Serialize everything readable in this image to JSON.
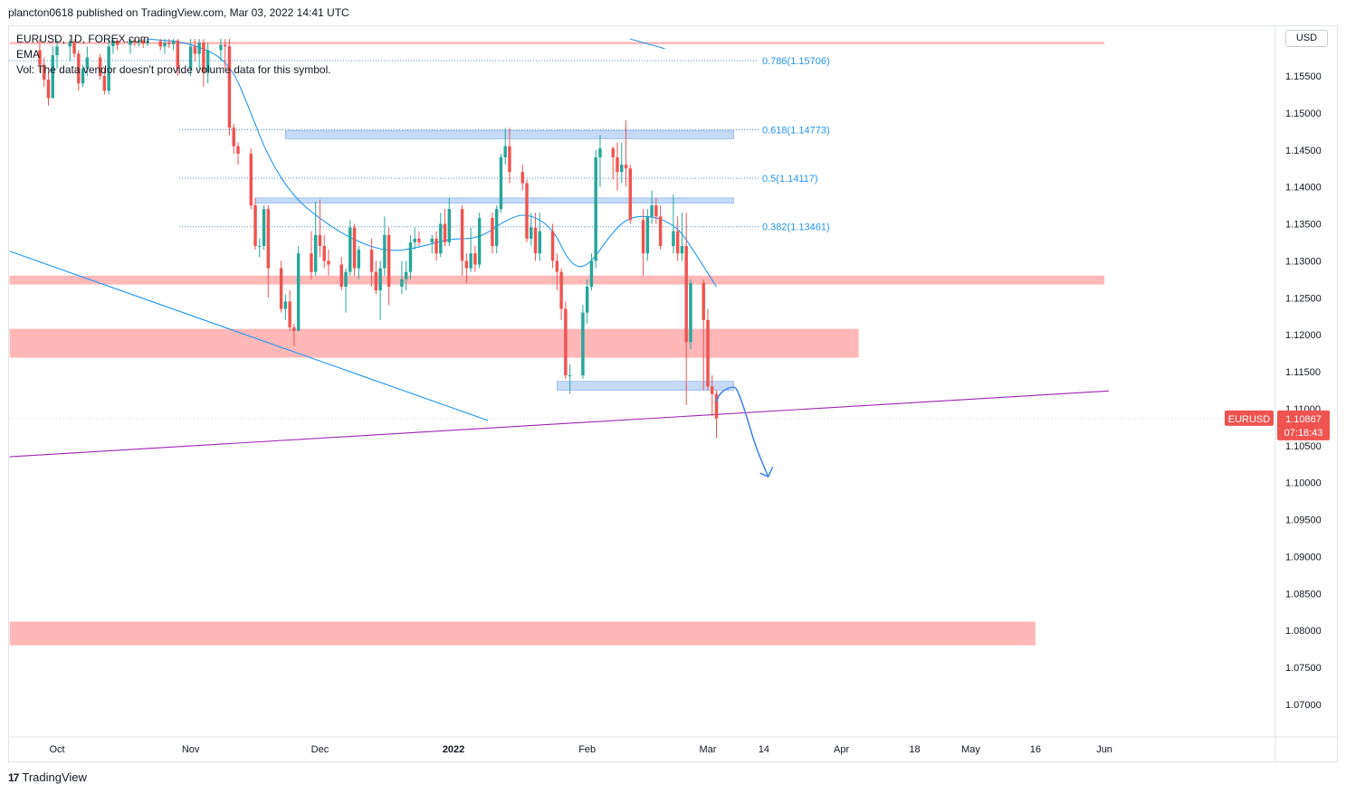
{
  "header": {
    "publish_line": "plancton0618 published on TradingView.com, Mar 03, 2022 14:41 UTC"
  },
  "legend": {
    "line1": "EURUSD, 1D, FOREX.com",
    "line2": "EMA",
    "line3": "Vol: The data vendor doesn't provide volume data for this symbol."
  },
  "currency_button": "USD",
  "footer": {
    "brand": "TradingView",
    "logo_mark": "17"
  },
  "colors": {
    "bull": "#26a69a",
    "bear": "#ef5350",
    "ema": "#2196f3",
    "resistance_zone": "#ffb3b3",
    "blue_zone": "#bcd3f5",
    "trend_purple": "#9c27b0",
    "price_tag": "#ef5350"
  },
  "chart_data": {
    "type": "candlestick",
    "symbol": "EURUSD",
    "timeframe": "1D",
    "y_axis": {
      "range": [
        1.0655,
        1.1595
      ],
      "ticks": [
        "1.15500",
        "1.15000",
        "1.14500",
        "1.14000",
        "1.13500",
        "1.13000",
        "1.12500",
        "1.12000",
        "1.11500",
        "1.11000",
        "1.10500",
        "1.10000",
        "1.09500",
        "1.09000",
        "1.08500",
        "1.08000",
        "1.07500",
        "1.07000"
      ]
    },
    "x_axis": {
      "ticks": [
        {
          "label": "Oct",
          "date": "2021-10-01"
        },
        {
          "label": "Nov",
          "date": "2021-11-01"
        },
        {
          "label": "Dec",
          "date": "2021-12-01"
        },
        {
          "label": "2022",
          "date": "2022-01-01"
        },
        {
          "label": "Feb",
          "date": "2022-02-01"
        },
        {
          "label": "Mar",
          "date": "2022-03-01"
        },
        {
          "label": "14",
          "date": "2022-03-14"
        },
        {
          "label": "Apr",
          "date": "2022-04-01"
        },
        {
          "label": "18",
          "date": "2022-04-18"
        },
        {
          "label": "May",
          "date": "2022-05-01"
        },
        {
          "label": "16",
          "date": "2022-05-16"
        },
        {
          "label": "Jun",
          "date": "2022-06-01"
        }
      ]
    },
    "current_price": {
      "label": "EURUSD",
      "value": "1.10867",
      "countdown": "07:18:43"
    },
    "fibonacci_levels": [
      {
        "label": "0.786(1.15706)",
        "price": 1.15706
      },
      {
        "label": "0.618(1.14773)",
        "price": 1.14773
      },
      {
        "label": "0.5(1.14117)",
        "price": 1.14117
      },
      {
        "label": "0.382(1.13461)",
        "price": 1.13461
      }
    ],
    "zones": [
      {
        "kind": "red",
        "top": 1.1596,
        "bottom": 1.1593,
        "start": "2021-09-20",
        "end": "2022-06-01"
      },
      {
        "kind": "red",
        "top": 1.128,
        "bottom": 1.1268,
        "start": "2021-09-20",
        "end": "2022-06-01"
      },
      {
        "kind": "red",
        "top": 1.1208,
        "bottom": 1.1169,
        "start": "2021-09-20",
        "end": "2022-04-05"
      },
      {
        "kind": "red",
        "top": 1.0812,
        "bottom": 1.078,
        "start": "2021-09-20",
        "end": "2022-05-16"
      },
      {
        "kind": "blue",
        "top": 1.1476,
        "bottom": 1.1465,
        "start": "2021-11-23",
        "end": "2022-03-07"
      },
      {
        "kind": "blue",
        "top": 1.1385,
        "bottom": 1.1378,
        "start": "2021-11-16",
        "end": "2022-03-07"
      },
      {
        "kind": "blue",
        "top": 1.1137,
        "bottom": 1.1125,
        "start": "2022-01-25",
        "end": "2022-03-07"
      }
    ],
    "ohlc": [
      [
        "2021-09-27",
        1.1585,
        1.16,
        1.1555,
        1.1565
      ],
      [
        "2021-09-28",
        1.1565,
        1.1575,
        1.1535,
        1.1545
      ],
      [
        "2021-09-29",
        1.1545,
        1.1555,
        1.151,
        1.152
      ],
      [
        "2021-09-30",
        1.152,
        1.159,
        1.152,
        1.1578
      ],
      [
        "2021-10-01",
        1.1578,
        1.16,
        1.156,
        1.159
      ],
      [
        "2021-10-04",
        1.159,
        1.16,
        1.157,
        1.1595
      ],
      [
        "2021-10-05",
        1.1595,
        1.16,
        1.1575,
        1.158
      ],
      [
        "2021-10-06",
        1.158,
        1.1585,
        1.153,
        1.154
      ],
      [
        "2021-10-07",
        1.154,
        1.1565,
        1.1535,
        1.156
      ],
      [
        "2021-10-08",
        1.156,
        1.159,
        1.155,
        1.1575
      ],
      [
        "2021-10-11",
        1.1575,
        1.158,
        1.1545,
        1.155
      ],
      [
        "2021-10-12",
        1.155,
        1.156,
        1.1525,
        1.153
      ],
      [
        "2021-10-13",
        1.153,
        1.16,
        1.1525,
        1.159
      ],
      [
        "2021-10-14",
        1.159,
        1.16,
        1.158,
        1.1598
      ],
      [
        "2021-10-15",
        1.1598,
        1.16,
        1.1585,
        1.1592
      ],
      [
        "2021-10-18",
        1.1592,
        1.16,
        1.158,
        1.1598
      ],
      [
        "2021-10-19",
        1.1598,
        1.16,
        1.159,
        1.1596
      ],
      [
        "2021-10-20",
        1.1596,
        1.16,
        1.159,
        1.1598
      ],
      [
        "2021-10-21",
        1.1598,
        1.16,
        1.1588,
        1.1594
      ],
      [
        "2021-10-22",
        1.1594,
        1.16,
        1.159,
        1.1597
      ],
      [
        "2021-10-25",
        1.1597,
        1.16,
        1.1585,
        1.159
      ],
      [
        "2021-10-26",
        1.159,
        1.16,
        1.158,
        1.1595
      ],
      [
        "2021-10-27",
        1.1595,
        1.16,
        1.1588,
        1.1593
      ],
      [
        "2021-10-28",
        1.1593,
        1.16,
        1.1585,
        1.1598
      ],
      [
        "2021-10-29",
        1.1598,
        1.16,
        1.155,
        1.156
      ],
      [
        "2021-11-01",
        1.156,
        1.16,
        1.155,
        1.159
      ],
      [
        "2021-11-02",
        1.159,
        1.16,
        1.157,
        1.158
      ],
      [
        "2021-11-03",
        1.158,
        1.16,
        1.156,
        1.1595
      ],
      [
        "2021-11-04",
        1.1595,
        1.16,
        1.1535,
        1.1555
      ],
      [
        "2021-11-05",
        1.1555,
        1.1595,
        1.154,
        1.1585
      ],
      [
        "2021-11-08",
        1.1585,
        1.16,
        1.157,
        1.1592
      ],
      [
        "2021-11-09",
        1.1592,
        1.16,
        1.156,
        1.159
      ],
      [
        "2021-11-10",
        1.159,
        1.16,
        1.147,
        1.148
      ],
      [
        "2021-11-11",
        1.148,
        1.1485,
        1.1445,
        1.1455
      ],
      [
        "2021-11-12",
        1.1455,
        1.146,
        1.143,
        1.1445
      ],
      [
        "2021-11-15",
        1.1445,
        1.1452,
        1.137,
        1.1375
      ],
      [
        "2021-11-16",
        1.1375,
        1.1385,
        1.1315,
        1.132
      ],
      [
        "2021-11-17",
        1.132,
        1.133,
        1.1305,
        1.132
      ],
      [
        "2021-11-18",
        1.132,
        1.1375,
        1.1315,
        1.137
      ],
      [
        "2021-11-19",
        1.137,
        1.1375,
        1.125,
        1.129
      ],
      [
        "2021-11-22",
        1.129,
        1.13,
        1.123,
        1.1235
      ],
      [
        "2021-11-23",
        1.1235,
        1.1255,
        1.122,
        1.1245
      ],
      [
        "2021-11-24",
        1.1245,
        1.126,
        1.1205,
        1.121
      ],
      [
        "2021-11-25",
        1.121,
        1.1215,
        1.1185,
        1.1205
      ],
      [
        "2021-11-26",
        1.1205,
        1.132,
        1.1205,
        1.131
      ],
      [
        "2021-11-29",
        1.131,
        1.134,
        1.1275,
        1.1285
      ],
      [
        "2021-11-30",
        1.1285,
        1.138,
        1.128,
        1.1335
      ],
      [
        "2021-12-01",
        1.1335,
        1.1383,
        1.1305,
        1.132
      ],
      [
        "2021-12-02",
        1.132,
        1.1335,
        1.129,
        1.13
      ],
      [
        "2021-12-03",
        1.13,
        1.1315,
        1.128,
        1.1295
      ],
      [
        "2021-12-06",
        1.1295,
        1.1305,
        1.126,
        1.1265
      ],
      [
        "2021-12-07",
        1.1265,
        1.129,
        1.123,
        1.1285
      ],
      [
        "2021-12-08",
        1.1285,
        1.1355,
        1.128,
        1.1345
      ],
      [
        "2021-12-09",
        1.1345,
        1.135,
        1.128,
        1.129
      ],
      [
        "2021-12-10",
        1.129,
        1.132,
        1.1275,
        1.1315
      ],
      [
        "2021-12-13",
        1.1315,
        1.133,
        1.1265,
        1.1285
      ],
      [
        "2021-12-14",
        1.1285,
        1.13,
        1.1255,
        1.126
      ],
      [
        "2021-12-15",
        1.126,
        1.13,
        1.122,
        1.129
      ],
      [
        "2021-12-16",
        1.129,
        1.136,
        1.128,
        1.1335
      ],
      [
        "2021-12-17",
        1.1335,
        1.1345,
        1.124,
        1.1265
      ],
      [
        "2021-12-20",
        1.1265,
        1.13,
        1.1255,
        1.1275
      ],
      [
        "2021-12-21",
        1.1275,
        1.13,
        1.126,
        1.1285
      ],
      [
        "2021-12-22",
        1.1285,
        1.1335,
        1.1275,
        1.1325
      ],
      [
        "2021-12-23",
        1.1325,
        1.1345,
        1.1315,
        1.133
      ],
      [
        "2021-12-24",
        1.133,
        1.134,
        1.132,
        1.1325
      ],
      [
        "2021-12-27",
        1.1325,
        1.1335,
        1.131,
        1.133
      ],
      [
        "2021-12-28",
        1.133,
        1.134,
        1.13,
        1.131
      ],
      [
        "2021-12-29",
        1.131,
        1.1365,
        1.1305,
        1.135
      ],
      [
        "2021-12-30",
        1.135,
        1.137,
        1.132,
        1.1325
      ],
      [
        "2021-12-31",
        1.1325,
        1.1385,
        1.132,
        1.137
      ],
      [
        "2022-01-03",
        1.137,
        1.1375,
        1.128,
        1.13
      ],
      [
        "2022-01-04",
        1.13,
        1.131,
        1.127,
        1.129
      ],
      [
        "2022-01-05",
        1.129,
        1.1345,
        1.1285,
        1.131
      ],
      [
        "2022-01-06",
        1.131,
        1.132,
        1.1285,
        1.1295
      ],
      [
        "2022-01-07",
        1.1295,
        1.1365,
        1.129,
        1.1358
      ],
      [
        "2022-01-10",
        1.1358,
        1.1365,
        1.131,
        1.132
      ],
      [
        "2022-01-11",
        1.132,
        1.1375,
        1.131,
        1.137
      ],
      [
        "2022-01-12",
        1.137,
        1.1445,
        1.1365,
        1.144
      ],
      [
        "2022-01-13",
        1.144,
        1.148,
        1.143,
        1.1455
      ],
      [
        "2022-01-14",
        1.1455,
        1.148,
        1.1405,
        1.142
      ],
      [
        "2022-01-17",
        1.142,
        1.143,
        1.1395,
        1.1405
      ],
      [
        "2022-01-18",
        1.1405,
        1.141,
        1.1325,
        1.133
      ],
      [
        "2022-01-19",
        1.133,
        1.1365,
        1.132,
        1.1345
      ],
      [
        "2022-01-20",
        1.1345,
        1.1365,
        1.13,
        1.131
      ],
      [
        "2022-01-21",
        1.131,
        1.1365,
        1.13,
        1.134
      ],
      [
        "2022-01-24",
        1.134,
        1.135,
        1.129,
        1.13
      ],
      [
        "2022-01-25",
        1.13,
        1.131,
        1.126,
        1.1285
      ],
      [
        "2022-01-26",
        1.1285,
        1.129,
        1.122,
        1.1235
      ],
      [
        "2022-01-27",
        1.1235,
        1.1245,
        1.114,
        1.1145
      ],
      [
        "2022-01-28",
        1.1145,
        1.116,
        1.112,
        1.1145
      ],
      [
        "2022-01-31",
        1.1145,
        1.124,
        1.114,
        1.123
      ],
      [
        "2022-02-01",
        1.123,
        1.1275,
        1.1215,
        1.1265
      ],
      [
        "2022-02-02",
        1.1265,
        1.131,
        1.126,
        1.13
      ],
      [
        "2022-02-03",
        1.13,
        1.145,
        1.129,
        1.144
      ],
      [
        "2022-02-04",
        1.144,
        1.147,
        1.14,
        1.1452
      ],
      [
        "2022-02-07",
        1.1452,
        1.1455,
        1.141,
        1.144
      ],
      [
        "2022-02-08",
        1.144,
        1.146,
        1.1395,
        1.142
      ],
      [
        "2022-02-09",
        1.142,
        1.146,
        1.1405,
        1.143
      ],
      [
        "2022-02-10",
        1.143,
        1.149,
        1.14,
        1.1425
      ],
      [
        "2022-02-11",
        1.1425,
        1.143,
        1.135,
        1.1355
      ],
      [
        "2022-02-14",
        1.1355,
        1.137,
        1.128,
        1.131
      ],
      [
        "2022-02-15",
        1.131,
        1.137,
        1.13,
        1.136
      ],
      [
        "2022-02-16",
        1.136,
        1.1395,
        1.135,
        1.1375
      ],
      [
        "2022-02-17",
        1.1375,
        1.1385,
        1.135,
        1.136
      ],
      [
        "2022-02-18",
        1.136,
        1.1375,
        1.1315,
        1.132
      ],
      [
        "2022-02-21",
        1.132,
        1.139,
        1.131,
        1.134
      ],
      [
        "2022-02-22",
        1.134,
        1.136,
        1.13,
        1.131
      ],
      [
        "2022-02-23",
        1.131,
        1.1365,
        1.13,
        1.132
      ],
      [
        "2022-02-24",
        1.132,
        1.1365,
        1.1105,
        1.119
      ],
      [
        "2022-02-25",
        1.119,
        1.1275,
        1.118,
        1.127
      ],
      [
        "2022-02-28",
        1.127,
        1.1275,
        1.1125,
        1.122
      ],
      [
        "2022-03-01",
        1.122,
        1.1235,
        1.1125,
        1.113
      ],
      [
        "2022-03-02",
        1.113,
        1.1145,
        1.109,
        1.112
      ],
      [
        "2022-03-03",
        1.112,
        1.1125,
        1.106,
        1.1087
      ]
    ],
    "ema_points": [
      [
        "2021-10-22",
        1.16
      ],
      [
        "2021-11-01",
        1.1595
      ],
      [
        "2021-11-10",
        1.157
      ],
      [
        "2021-11-15",
        1.15
      ],
      [
        "2021-11-19",
        1.144
      ],
      [
        "2021-11-25",
        1.1385
      ],
      [
        "2021-12-03",
        1.1348
      ],
      [
        "2021-12-10",
        1.1325
      ],
      [
        "2021-12-17",
        1.1312
      ],
      [
        "2021-12-24",
        1.1318
      ],
      [
        "2021-12-31",
        1.133
      ],
      [
        "2022-01-07",
        1.133
      ],
      [
        "2022-01-13",
        1.1355
      ],
      [
        "2022-01-18",
        1.1365
      ],
      [
        "2022-01-24",
        1.1345
      ],
      [
        "2022-01-28",
        1.1295
      ],
      [
        "2022-02-01",
        1.129
      ],
      [
        "2022-02-07",
        1.134
      ],
      [
        "2022-02-11",
        1.136
      ],
      [
        "2022-02-17",
        1.136
      ],
      [
        "2022-02-22",
        1.1345
      ],
      [
        "2022-02-25",
        1.132
      ],
      [
        "2022-03-03",
        1.1265
      ]
    ],
    "lines": [
      {
        "kind": "ema_decline_top",
        "from": [
          "2022-02-11",
          1.16
        ],
        "to": [
          "2022-02-19",
          1.1587
        ]
      },
      {
        "kind": "blue_trend",
        "from": [
          "2021-09-20",
          1.1313
        ],
        "to": [
          "2022-01-09",
          1.1084
        ]
      },
      {
        "kind": "purple_trend",
        "from": [
          "2021-09-20",
          1.1035
        ],
        "to": [
          "2022-06-02",
          1.1124
        ]
      }
    ],
    "projection": [
      [
        "2022-03-03",
        1.111
      ],
      [
        "2022-03-04",
        1.1123
      ],
      [
        "2022-03-07",
        1.1131
      ],
      [
        "2022-03-08",
        1.1124
      ],
      [
        "2022-03-10",
        1.109
      ],
      [
        "2022-03-12",
        1.105
      ],
      [
        "2022-03-15",
        1.1008
      ]
    ]
  }
}
